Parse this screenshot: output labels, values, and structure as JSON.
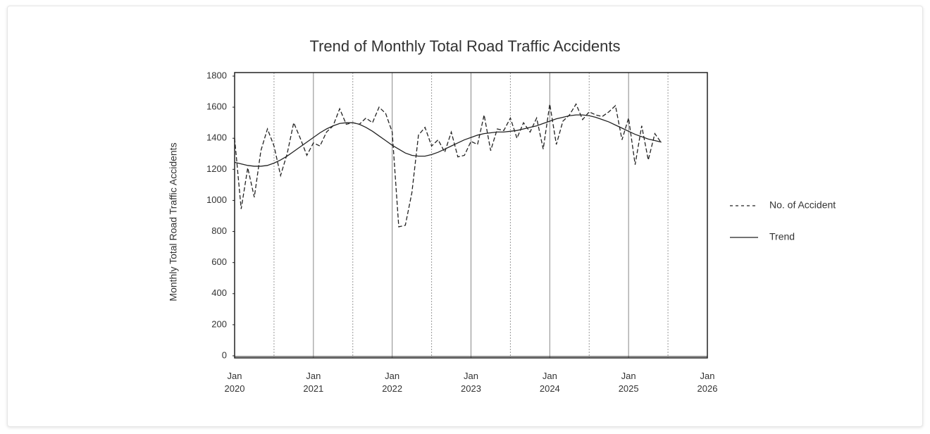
{
  "chart_data": {
    "type": "line",
    "title": "Trend of Monthly Total Road Traffic Accidents",
    "y_label": "Monthly Total Road Traffic Accidents",
    "x": [
      "2020-01",
      "2020-02",
      "2020-03",
      "2020-04",
      "2020-05",
      "2020-06",
      "2020-07",
      "2020-08",
      "2020-09",
      "2020-10",
      "2020-11",
      "2020-12",
      "2021-01",
      "2021-02",
      "2021-03",
      "2021-04",
      "2021-05",
      "2021-06",
      "2021-07",
      "2021-08",
      "2021-09",
      "2021-10",
      "2021-11",
      "2021-12",
      "2022-01",
      "2022-02",
      "2022-03",
      "2022-04",
      "2022-05",
      "2022-06",
      "2022-07",
      "2022-08",
      "2022-09",
      "2022-10",
      "2022-11",
      "2022-12",
      "2023-01",
      "2023-02",
      "2023-03",
      "2023-04",
      "2023-05",
      "2023-06",
      "2023-07",
      "2023-08",
      "2023-09",
      "2023-10",
      "2023-11",
      "2023-12",
      "2024-01",
      "2024-02",
      "2024-03",
      "2024-04",
      "2024-05",
      "2024-06",
      "2024-07",
      "2024-08",
      "2024-09",
      "2024-10",
      "2024-11",
      "2024-12",
      "2025-01",
      "2025-02",
      "2025-03",
      "2025-04",
      "2025-05",
      "2025-06"
    ],
    "series": [
      {
        "name": "No. of Accident",
        "color": "#222222",
        "dash": true,
        "values": [
          1400,
          945,
          1210,
          1020,
          1320,
          1460,
          1350,
          1160,
          1300,
          1500,
          1400,
          1290,
          1370,
          1350,
          1440,
          1480,
          1590,
          1490,
          1500,
          1490,
          1530,
          1500,
          1600,
          1560,
          1440,
          830,
          840,
          1050,
          1420,
          1470,
          1350,
          1390,
          1310,
          1440,
          1280,
          1290,
          1380,
          1360,
          1550,
          1320,
          1460,
          1450,
          1530,
          1400,
          1500,
          1440,
          1530,
          1330,
          1620,
          1360,
          1510,
          1550,
          1620,
          1520,
          1570,
          1550,
          1540,
          1570,
          1610,
          1390,
          1530,
          1230,
          1480,
          1260,
          1430,
          1370
        ]
      },
      {
        "name": "Trend",
        "color": "#222222",
        "dash": false,
        "values": [
          1245,
          1235,
          1225,
          1220,
          1220,
          1225,
          1240,
          1260,
          1285,
          1315,
          1345,
          1375,
          1405,
          1435,
          1460,
          1480,
          1495,
          1500,
          1500,
          1490,
          1470,
          1445,
          1415,
          1385,
          1355,
          1330,
          1305,
          1290,
          1285,
          1285,
          1295,
          1310,
          1330,
          1350,
          1370,
          1390,
          1405,
          1420,
          1430,
          1435,
          1440,
          1440,
          1445,
          1450,
          1460,
          1470,
          1480,
          1495,
          1510,
          1525,
          1535,
          1545,
          1550,
          1550,
          1545,
          1535,
          1520,
          1505,
          1485,
          1465,
          1445,
          1425,
          1410,
          1395,
          1385,
          1375
        ]
      }
    ],
    "xlim": [
      "2020-01",
      "2026-01"
    ],
    "xticks": [
      {
        "value": "2020-01",
        "label": "Jan 2020"
      },
      {
        "value": "2021-01",
        "label": "Jan 2021"
      },
      {
        "value": "2022-01",
        "label": "Jan 2022"
      },
      {
        "value": "2023-01",
        "label": "Jan 2023"
      },
      {
        "value": "2024-01",
        "label": "Jan 2024"
      },
      {
        "value": "2025-01",
        "label": "Jan 2025"
      },
      {
        "value": "2026-01",
        "label": "Jan 2026"
      }
    ],
    "x_minor_grid": [
      "2020-07",
      "2021-07",
      "2022-07",
      "2023-07",
      "2024-07",
      "2025-07"
    ],
    "ylim": [
      0,
      1800
    ],
    "yticks": [
      0,
      200,
      400,
      600,
      800,
      1000,
      1200,
      1400,
      1600,
      1800
    ],
    "legend": "right"
  }
}
